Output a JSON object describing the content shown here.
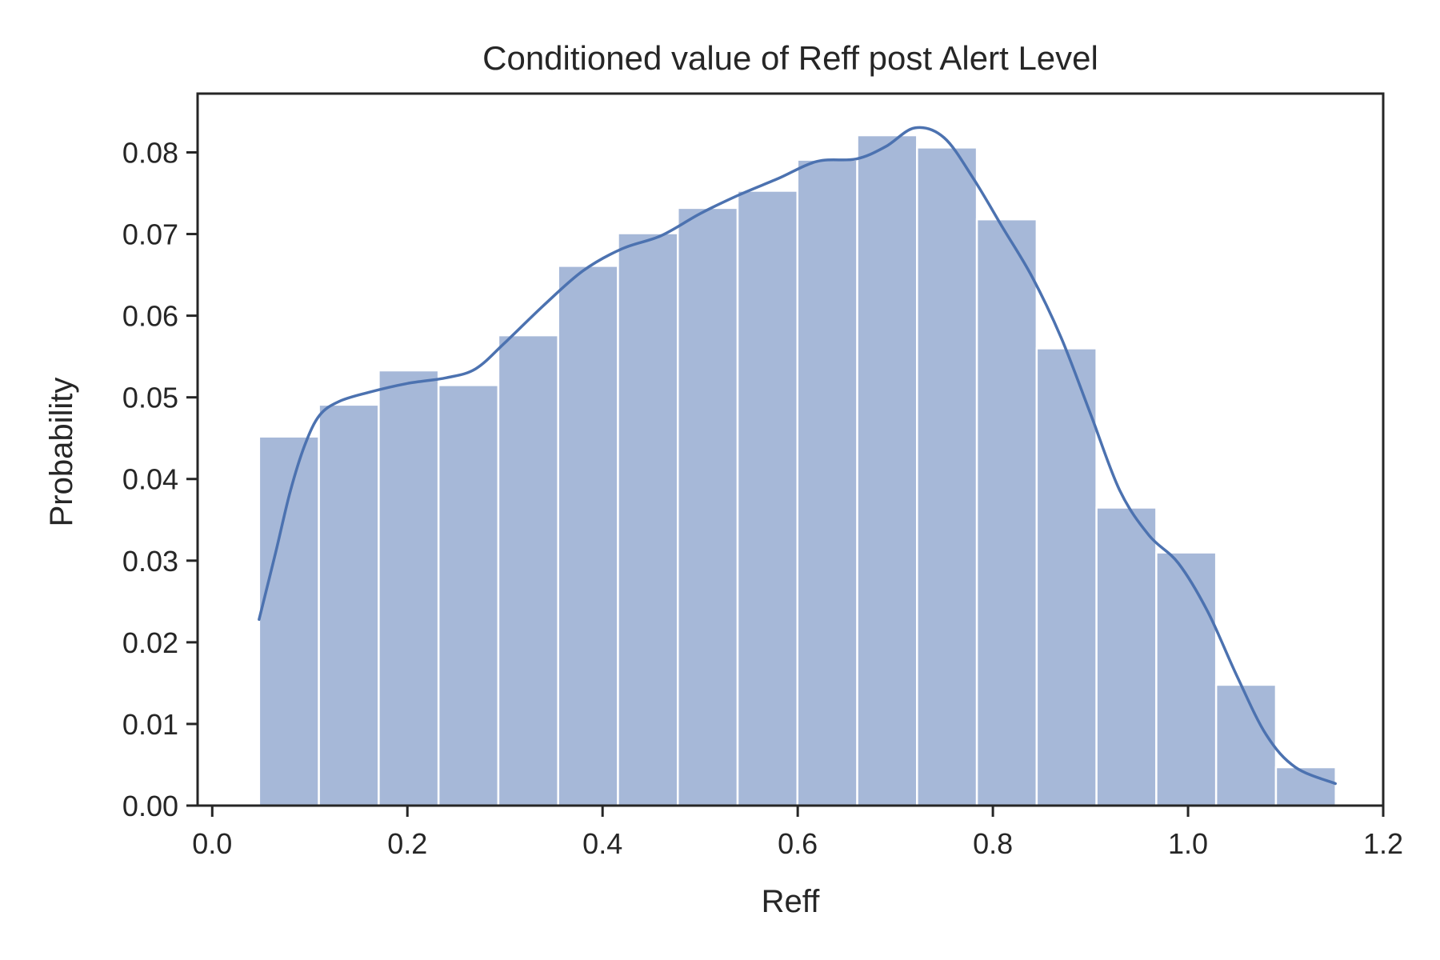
{
  "chart_data": {
    "type": "bar",
    "title": "Conditioned value of Reff post Alert Level",
    "xlabel": "Reff",
    "ylabel": "Probability",
    "xlim": [
      -0.015,
      1.2
    ],
    "ylim": [
      0,
      0.0872
    ],
    "xticks": [
      0.0,
      0.2,
      0.4,
      0.6,
      0.8,
      1.0,
      1.2
    ],
    "xtick_labels": [
      "0.0",
      "0.2",
      "0.4",
      "0.6",
      "0.8",
      "1.0",
      "1.2"
    ],
    "yticks": [
      0,
      0.01,
      0.02,
      0.03,
      0.04,
      0.05,
      0.06,
      0.07,
      0.08
    ],
    "ytick_labels": [
      "0.00",
      "0.01",
      "0.02",
      "0.03",
      "0.04",
      "0.05",
      "0.06",
      "0.07",
      "0.08"
    ],
    "grid": false,
    "bin_edges": [
      0.048,
      0.1093,
      0.1706,
      0.2319,
      0.2932,
      0.3545,
      0.4158,
      0.4771,
      0.5384,
      0.5997,
      0.661,
      0.7223,
      0.7836,
      0.8449,
      0.9062,
      0.9675,
      1.0288,
      1.0901,
      1.1514
    ],
    "values": [
      0.0452,
      0.0491,
      0.0533,
      0.0515,
      0.0576,
      0.0661,
      0.0701,
      0.0732,
      0.0753,
      0.0791,
      0.0821,
      0.0806,
      0.0718,
      0.056,
      0.0365,
      0.031,
      0.0148,
      0.0047
    ],
    "kde": {
      "x": [
        0.048,
        0.065,
        0.08,
        0.095,
        0.11,
        0.13,
        0.16,
        0.2,
        0.24,
        0.27,
        0.3,
        0.34,
        0.38,
        0.42,
        0.46,
        0.5,
        0.54,
        0.58,
        0.62,
        0.66,
        0.69,
        0.72,
        0.75,
        0.78,
        0.81,
        0.84,
        0.87,
        0.9,
        0.93,
        0.96,
        0.99,
        1.02,
        1.05,
        1.08,
        1.11,
        1.151
      ],
      "y": [
        0.0228,
        0.031,
        0.0385,
        0.0442,
        0.0478,
        0.0495,
        0.0506,
        0.0517,
        0.0524,
        0.0535,
        0.0567,
        0.0613,
        0.0655,
        0.0682,
        0.0698,
        0.0725,
        0.0748,
        0.0768,
        0.0789,
        0.0792,
        0.0807,
        0.083,
        0.0818,
        0.0768,
        0.0708,
        0.0648,
        0.0573,
        0.048,
        0.0386,
        0.0331,
        0.0297,
        0.0238,
        0.0159,
        0.0087,
        0.0047,
        0.0027
      ]
    },
    "colors": {
      "bar_fill": "#a6b8d8",
      "bar_edge": "#ffffff",
      "kde_line": "#4c72b0",
      "axis": "#262626"
    }
  }
}
